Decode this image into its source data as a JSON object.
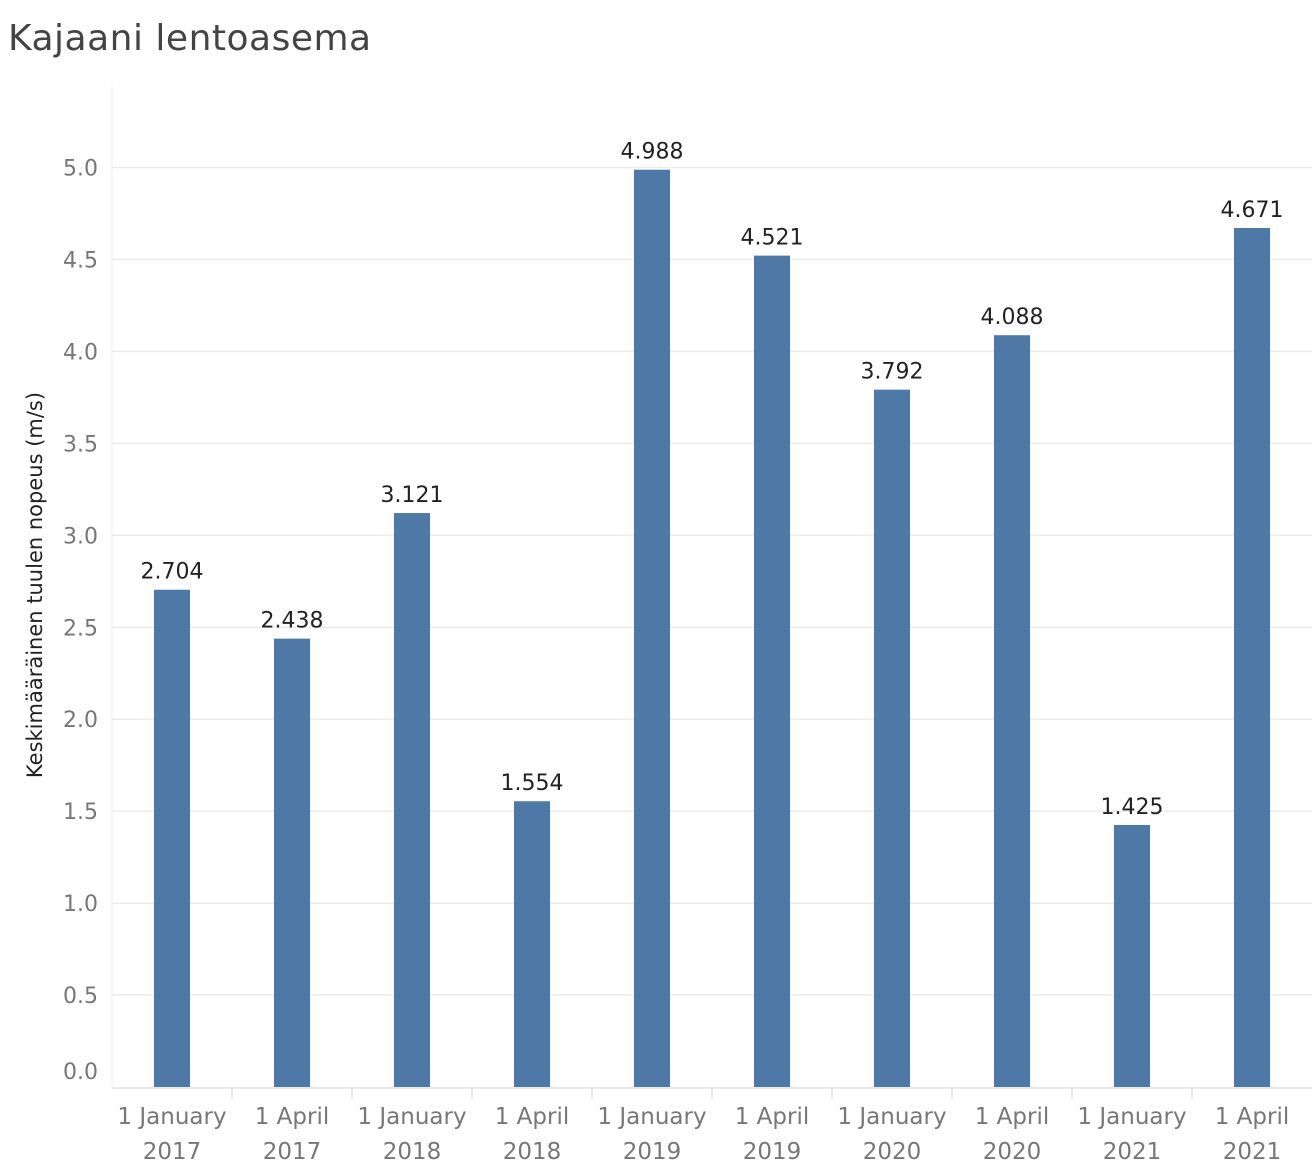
{
  "chart_data": {
    "type": "bar",
    "title": "Kajaani lentoasema",
    "ylabel": "Keskimääräinen tuulen nopeus (m/s)",
    "xlabel": "",
    "categories": [
      [
        "1 January",
        "2017"
      ],
      [
        "1 April",
        "2017"
      ],
      [
        "1 January",
        "2018"
      ],
      [
        "1 April",
        "2018"
      ],
      [
        "1 January",
        "2019"
      ],
      [
        "1 April",
        "2019"
      ],
      [
        "1 January",
        "2020"
      ],
      [
        "1 April",
        "2020"
      ],
      [
        "1 January",
        "2021"
      ],
      [
        "1 April",
        "2021"
      ]
    ],
    "values": [
      2.704,
      2.438,
      3.121,
      1.554,
      4.988,
      4.521,
      3.792,
      4.088,
      1.425,
      4.671
    ],
    "data_labels": [
      "2.704",
      "2.438",
      "3.121",
      "1.554",
      "4.988",
      "4.521",
      "3.792",
      "4.088",
      "1.425",
      "4.671"
    ],
    "yticks": [
      "0.0",
      "0.5",
      "1.0",
      "1.5",
      "2.0",
      "2.5",
      "3.0",
      "3.5",
      "4.0",
      "4.5",
      "5.0"
    ],
    "ylim": [
      0,
      5.45
    ],
    "grid": true,
    "bar_color": "#4e79a7",
    "grid_color": "#ececec"
  }
}
